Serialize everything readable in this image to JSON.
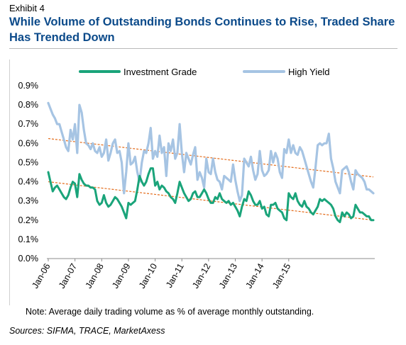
{
  "header": {
    "exhibit": "Exhibit 4",
    "title": "While Volume of Outstanding Bonds Continues to Rise, Traded Share Has Trended Down"
  },
  "footer": {
    "note": "Note: Average daily trading volume as % of average monthly outstanding.",
    "sources": "Sources: SIFMA, TRACE, MarketAxess"
  },
  "chart_data": {
    "type": "line",
    "title": "",
    "xlabel": "",
    "ylabel": "",
    "x_start": "2006-01",
    "x_end": "2015-09",
    "x_ticks": [
      "Jan-06",
      "Jan-07",
      "Jan-08",
      "Jan-09",
      "Jan-10",
      "Jan-11",
      "Jan-12",
      "Jan-13",
      "Jan-14",
      "Jan-15"
    ],
    "y_ticks": [
      "0.0%",
      "0.1%",
      "0.2%",
      "0.3%",
      "0.4%",
      "0.5%",
      "0.6%",
      "0.7%",
      "0.8%",
      "0.9%"
    ],
    "ylim": [
      0,
      0.9
    ],
    "grid": false,
    "legend_position": "top",
    "series": [
      {
        "name": "Investment Grade",
        "color": "#1aa47a",
        "values": [
          0.45,
          0.4,
          0.35,
          0.37,
          0.38,
          0.36,
          0.34,
          0.32,
          0.31,
          0.33,
          0.37,
          0.4,
          0.39,
          0.32,
          0.44,
          0.41,
          0.39,
          0.38,
          0.38,
          0.37,
          0.37,
          0.36,
          0.3,
          0.28,
          0.29,
          0.33,
          0.29,
          0.27,
          0.28,
          0.3,
          0.32,
          0.31,
          0.29,
          0.27,
          0.24,
          0.21,
          0.29,
          0.28,
          0.29,
          0.3,
          0.36,
          0.43,
          0.4,
          0.38,
          0.4,
          0.44,
          0.47,
          0.47,
          0.38,
          0.4,
          0.36,
          0.38,
          0.37,
          0.35,
          0.34,
          0.32,
          0.31,
          0.29,
          0.34,
          0.4,
          0.37,
          0.34,
          0.32,
          0.3,
          0.31,
          0.34,
          0.35,
          0.32,
          0.32,
          0.34,
          0.36,
          0.34,
          0.31,
          0.29,
          0.29,
          0.32,
          0.31,
          0.34,
          0.31,
          0.3,
          0.29,
          0.3,
          0.28,
          0.29,
          0.27,
          0.25,
          0.22,
          0.27,
          0.31,
          0.3,
          0.35,
          0.33,
          0.3,
          0.28,
          0.28,
          0.3,
          0.26,
          0.27,
          0.23,
          0.22,
          0.28,
          0.28,
          0.29,
          0.26,
          0.25,
          0.24,
          0.21,
          0.2,
          0.34,
          0.32,
          0.31,
          0.34,
          0.3,
          0.28,
          0.27,
          0.3,
          0.27,
          0.26,
          0.24,
          0.23,
          0.25,
          0.27,
          0.31,
          0.3,
          0.31,
          0.3,
          0.29,
          0.28,
          0.26,
          0.22,
          0.2,
          0.19,
          0.24,
          0.22,
          0.24,
          0.23,
          0.21,
          0.22,
          0.28,
          0.26,
          0.24,
          0.24,
          0.23,
          0.22,
          0.22,
          0.2,
          0.2
        ]
      },
      {
        "name": "High Yield",
        "color": "#a6c4e3",
        "values": [
          0.81,
          0.78,
          0.75,
          0.73,
          0.7,
          0.7,
          0.66,
          0.62,
          0.58,
          0.56,
          0.67,
          0.62,
          0.7,
          0.55,
          0.8,
          0.76,
          0.67,
          0.6,
          0.59,
          0.57,
          0.6,
          0.56,
          0.55,
          0.58,
          0.53,
          0.55,
          0.62,
          0.51,
          0.55,
          0.6,
          0.62,
          0.55,
          0.56,
          0.5,
          0.34,
          0.45,
          0.6,
          0.49,
          0.5,
          0.53,
          0.45,
          0.4,
          0.5,
          0.56,
          0.55,
          0.6,
          0.68,
          0.52,
          0.56,
          0.53,
          0.64,
          0.55,
          0.58,
          0.43,
          0.6,
          0.56,
          0.62,
          0.52,
          0.55,
          0.7,
          0.55,
          0.45,
          0.55,
          0.52,
          0.49,
          0.54,
          0.58,
          0.41,
          0.45,
          0.42,
          0.37,
          0.52,
          0.45,
          0.44,
          0.52,
          0.45,
          0.41,
          0.4,
          0.36,
          0.43,
          0.42,
          0.41,
          0.4,
          0.49,
          0.41,
          0.35,
          0.3,
          0.33,
          0.52,
          0.5,
          0.48,
          0.53,
          0.46,
          0.41,
          0.44,
          0.56,
          0.46,
          0.43,
          0.44,
          0.46,
          0.56,
          0.5,
          0.55,
          0.52,
          0.45,
          0.42,
          0.57,
          0.55,
          0.62,
          0.55,
          0.59,
          0.55,
          0.54,
          0.58,
          0.56,
          0.52,
          0.48,
          0.44,
          0.4,
          0.37,
          0.47,
          0.59,
          0.6,
          0.59,
          0.6,
          0.6,
          0.65,
          0.52,
          0.47,
          0.4,
          0.37,
          0.34,
          0.46,
          0.47,
          0.48,
          0.45,
          0.4,
          0.36,
          0.46,
          0.44,
          0.43,
          0.42,
          0.4,
          0.36,
          0.36,
          0.35,
          0.34
        ]
      }
    ],
    "trendlines": [
      {
        "series": "Investment Grade",
        "color": "#e36b1a",
        "start": 0.4,
        "end": 0.2
      },
      {
        "series": "High Yield",
        "color": "#e36b1a",
        "start": 0.625,
        "end": 0.425
      }
    ]
  }
}
